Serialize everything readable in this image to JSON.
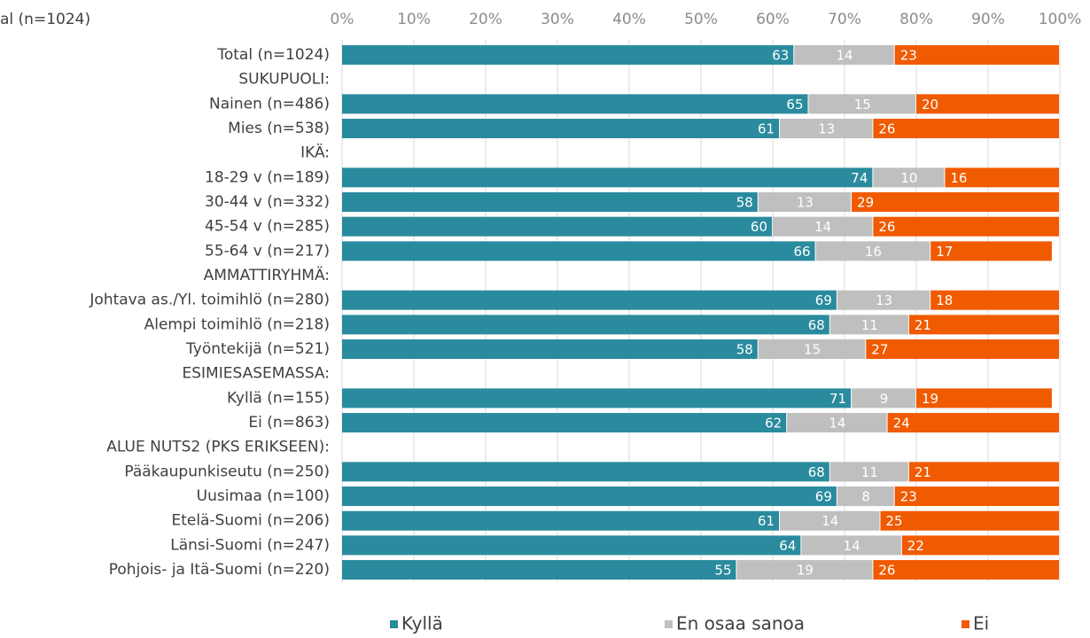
{
  "chart_data": {
    "type": "stacked_bar_horizontal",
    "top_label": "al (n=1024)",
    "categories": [
      "Total (n=1024)",
      "SUKUPUOLI:",
      "Nainen (n=486)",
      "Mies (n=538)",
      "IKÄ:",
      "18-29 v (n=189)",
      "30-44 v (n=332)",
      "45-54 v (n=285)",
      "55-64 v (n=217)",
      "AMMATTIRYHMÄ:",
      "Johtava as./Yl. toimihlö (n=280)",
      "Alempi toimihlö (n=218)",
      "Työntekijä (n=521)",
      "ESIMIESASEMASSA:",
      "Kyllä (n=155)",
      "Ei (n=863)",
      "ALUE NUTS2 (PKS ERIKSEEN):",
      "Pääkaupunkiseutu (n=250)",
      "Uusimaa (n=100)",
      "Etelä-Suomi (n=206)",
      "Länsi-Suomi (n=247)",
      "Pohjois- ja Itä-Suomi (n=220)"
    ],
    "series": [
      {
        "name": "Kyllä",
        "color": "#2a8b9e",
        "values": [
          63,
          null,
          65,
          61,
          null,
          74,
          58,
          60,
          66,
          null,
          69,
          68,
          58,
          null,
          71,
          62,
          null,
          68,
          69,
          61,
          64,
          55
        ]
      },
      {
        "name": "En osaa sanoa",
        "color": "#bfbfbf",
        "values": [
          14,
          null,
          15,
          13,
          null,
          10,
          13,
          14,
          16,
          null,
          13,
          11,
          15,
          null,
          9,
          14,
          null,
          11,
          8,
          14,
          14,
          19
        ]
      },
      {
        "name": "Ei",
        "color": "#f05a00",
        "values": [
          23,
          null,
          20,
          26,
          null,
          16,
          29,
          26,
          17,
          null,
          18,
          21,
          27,
          null,
          19,
          24,
          null,
          21,
          23,
          25,
          22,
          26
        ]
      }
    ],
    "xlim": [
      0,
      100
    ],
    "xticks": [
      {
        "value": 0,
        "label": "0%"
      },
      {
        "value": 10,
        "label": "10%"
      },
      {
        "value": 20,
        "label": "20%"
      },
      {
        "value": 30,
        "label": "30%"
      },
      {
        "value": 40,
        "label": "40%"
      },
      {
        "value": 50,
        "label": "50%"
      },
      {
        "value": 60,
        "label": "60%"
      },
      {
        "value": 70,
        "label": "70%"
      },
      {
        "value": 80,
        "label": "80%"
      },
      {
        "value": 90,
        "label": "90%"
      },
      {
        "value": 100,
        "label": "100%"
      }
    ],
    "grid": true,
    "legend": "bottom"
  }
}
